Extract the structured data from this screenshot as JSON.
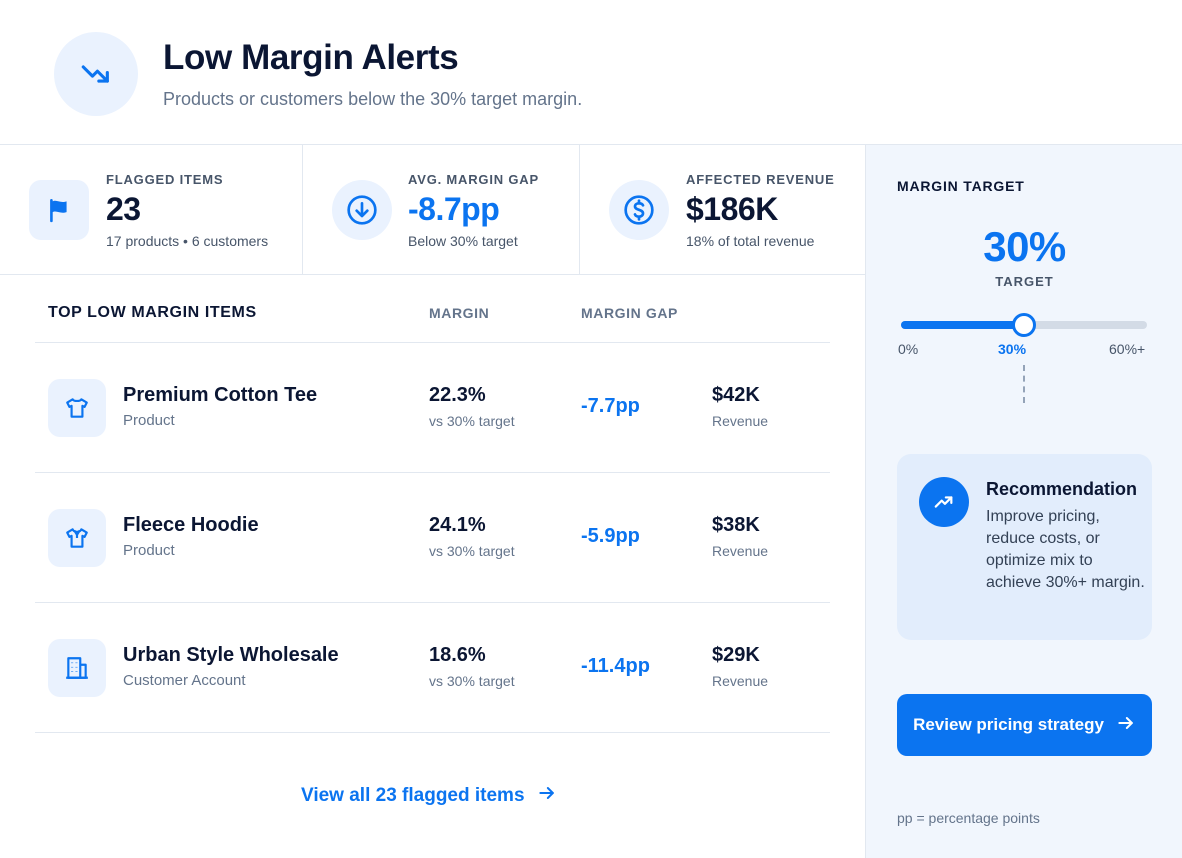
{
  "header": {
    "title": "Low Margin Alerts",
    "subtitle": "Products or customers below the 30% target margin.",
    "icon": "trending-down-icon"
  },
  "stats": [
    {
      "label": "FLAGGED ITEMS",
      "value": "23",
      "sub": "17 products • 6 customers",
      "icon": "flag-icon"
    },
    {
      "label": "AVG. MARGIN GAP",
      "value": "-8.7pp",
      "sub": "Below 30% target",
      "icon": "arrow-down-circle-icon"
    },
    {
      "label": "AFFECTED REVENUE",
      "value": "$186K",
      "sub": "18% of total revenue",
      "icon": "dollar-circle-icon"
    }
  ],
  "table": {
    "title": "TOP LOW MARGIN ITEMS",
    "col_margin": "MARGIN",
    "col_gap": "MARGIN GAP",
    "rows": [
      {
        "name": "Premium Cotton Tee",
        "type": "Product",
        "margin": "22.3%",
        "margin_sub": "vs 30% target",
        "gap": "-7.7pp",
        "revenue": "$42K",
        "revenue_sub": "Revenue",
        "icon": "tshirt-icon"
      },
      {
        "name": "Fleece Hoodie",
        "type": "Product",
        "margin": "24.1%",
        "margin_sub": "vs 30% target",
        "gap": "-5.9pp",
        "revenue": "$38K",
        "revenue_sub": "Revenue",
        "icon": "hoodie-icon"
      },
      {
        "name": "Urban Style Wholesale",
        "type": "Customer Account",
        "margin": "18.6%",
        "margin_sub": "vs 30% target",
        "gap": "-11.4pp",
        "revenue": "$29K",
        "revenue_sub": "Revenue",
        "icon": "building-icon"
      }
    ],
    "view_all_label": "View all 23 flagged items"
  },
  "side": {
    "title": "MARGIN TARGET",
    "target_value": "30%",
    "target_label": "TARGET",
    "slider_level": 0.5,
    "ticks": {
      "min": "0%",
      "mid": "30%",
      "max": "60%+"
    },
    "recommendation": {
      "title": "Recommendation",
      "text": "Improve pricing, reduce costs, or optimize mix to achieve 30%+ margin."
    },
    "cta_label": "Review pricing strategy",
    "footnote": "pp = percentage points"
  },
  "colors": {
    "accent": "#0b74f0",
    "icon_bg": "#eaf2fe",
    "side_bg": "#f1f6fd"
  }
}
